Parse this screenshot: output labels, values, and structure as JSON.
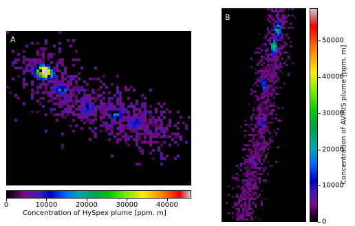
{
  "chart_data": [
    {
      "type": "heatmap",
      "panel_label": "A",
      "colorbar": {
        "orientation": "horizontal",
        "label": "Concentration of HySpex plume [ppm. m]",
        "ticks": [
          0,
          10000,
          20000,
          30000,
          40000
        ],
        "range": [
          0,
          46000
        ]
      },
      "hotspots": [
        {
          "x": 0.2,
          "y": 0.26,
          "value": 44000
        },
        {
          "x": 0.22,
          "y": 0.28,
          "value": 34000
        },
        {
          "x": 0.3,
          "y": 0.38,
          "value": 12000
        },
        {
          "x": 0.45,
          "y": 0.5,
          "value": 9000
        },
        {
          "x": 0.6,
          "y": 0.55,
          "value": 11000
        },
        {
          "x": 0.7,
          "y": 0.6,
          "value": 8000
        }
      ],
      "plume_path": [
        [
          0.19,
          0.25
        ],
        [
          0.24,
          0.31
        ],
        [
          0.32,
          0.41
        ],
        [
          0.42,
          0.48
        ],
        [
          0.55,
          0.52
        ],
        [
          0.68,
          0.58
        ],
        [
          0.8,
          0.64
        ]
      ]
    },
    {
      "type": "heatmap",
      "panel_label": "B",
      "colorbar": {
        "orientation": "vertical",
        "label": "Concentration of AVIRIS plume [ppm. m]",
        "ticks": [
          0,
          10000,
          20000,
          30000,
          40000,
          50000
        ],
        "range": [
          0,
          59000
        ]
      },
      "hotspots": [
        {
          "x": 0.67,
          "y": 0.1,
          "value": 30000
        },
        {
          "x": 0.62,
          "y": 0.18,
          "value": 36000
        },
        {
          "x": 0.5,
          "y": 0.36,
          "value": 14000
        },
        {
          "x": 0.48,
          "y": 0.54,
          "value": 9000
        },
        {
          "x": 0.4,
          "y": 0.72,
          "value": 6000
        }
      ],
      "plume_path": [
        [
          0.7,
          0.06
        ],
        [
          0.64,
          0.18
        ],
        [
          0.55,
          0.32
        ],
        [
          0.5,
          0.46
        ],
        [
          0.46,
          0.6
        ],
        [
          0.38,
          0.74
        ],
        [
          0.3,
          0.88
        ],
        [
          0.24,
          0.99
        ]
      ]
    }
  ]
}
